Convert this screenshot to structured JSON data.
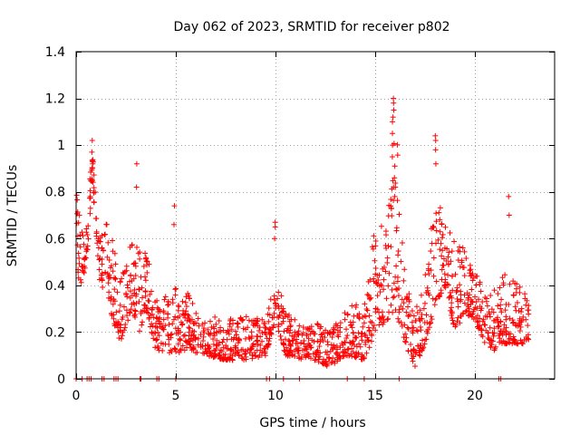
{
  "chart_data": {
    "type": "scatter",
    "title": "Day 062 of 2023, SRMTID for receiver p802",
    "xlabel": "GPS time / hours",
    "ylabel": "SRMTID / TECUs",
    "xlim": [
      0,
      24
    ],
    "ylim": [
      0,
      1.4
    ],
    "x_ticks": [
      0,
      5,
      10,
      15,
      20
    ],
    "x_tick_labels": [
      "0",
      "5",
      "10",
      "15",
      "20"
    ],
    "y_ticks": [
      0,
      0.2,
      0.4,
      0.6,
      0.8,
      1,
      1.2,
      1.4
    ],
    "y_tick_labels": [
      "0",
      "0.2",
      "0.4",
      "0.6",
      "0.8",
      "1",
      "1.2",
      "1.4"
    ],
    "grid": true,
    "marker": "+",
    "series": [
      {
        "name": "SRMTID",
        "color": "#ff0000",
        "envelope": [
          {
            "x": 0.0,
            "lo": 0.45,
            "hi": 0.8
          },
          {
            "x": 0.3,
            "lo": 0.4,
            "hi": 0.72
          },
          {
            "x": 0.6,
            "lo": 0.55,
            "hi": 0.7
          },
          {
            "x": 0.8,
            "lo": 0.85,
            "hi": 1.02
          },
          {
            "x": 1.2,
            "lo": 0.4,
            "hi": 0.6
          },
          {
            "x": 1.5,
            "lo": 0.35,
            "hi": 0.72
          },
          {
            "x": 2.2,
            "lo": 0.15,
            "hi": 0.45
          },
          {
            "x": 2.8,
            "lo": 0.3,
            "hi": 0.62
          },
          {
            "x": 3.2,
            "lo": 0.2,
            "hi": 0.62
          },
          {
            "x": 3.5,
            "lo": 0.3,
            "hi": 0.58
          },
          {
            "x": 4.0,
            "lo": 0.12,
            "hi": 0.35
          },
          {
            "x": 4.8,
            "lo": 0.1,
            "hi": 0.4
          },
          {
            "x": 5.5,
            "lo": 0.12,
            "hi": 0.38
          },
          {
            "x": 6.5,
            "lo": 0.1,
            "hi": 0.28
          },
          {
            "x": 7.5,
            "lo": 0.08,
            "hi": 0.25
          },
          {
            "x": 8.5,
            "lo": 0.08,
            "hi": 0.28
          },
          {
            "x": 9.5,
            "lo": 0.1,
            "hi": 0.25
          },
          {
            "x": 10.0,
            "lo": 0.25,
            "hi": 0.45
          },
          {
            "x": 10.5,
            "lo": 0.1,
            "hi": 0.3
          },
          {
            "x": 11.5,
            "lo": 0.08,
            "hi": 0.22
          },
          {
            "x": 12.0,
            "lo": 0.08,
            "hi": 0.25
          },
          {
            "x": 12.7,
            "lo": 0.05,
            "hi": 0.2
          },
          {
            "x": 13.5,
            "lo": 0.1,
            "hi": 0.3
          },
          {
            "x": 14.5,
            "lo": 0.08,
            "hi": 0.35
          },
          {
            "x": 15.0,
            "lo": 0.2,
            "hi": 0.72
          },
          {
            "x": 15.6,
            "lo": 0.25,
            "hi": 0.65
          },
          {
            "x": 16.0,
            "lo": 0.3,
            "hi": 1.2
          },
          {
            "x": 16.5,
            "lo": 0.15,
            "hi": 0.45
          },
          {
            "x": 17.0,
            "lo": 0.05,
            "hi": 0.3
          },
          {
            "x": 17.5,
            "lo": 0.15,
            "hi": 0.45
          },
          {
            "x": 18.0,
            "lo": 0.3,
            "hi": 0.8
          },
          {
            "x": 18.5,
            "lo": 0.4,
            "hi": 0.68
          },
          {
            "x": 19.0,
            "lo": 0.2,
            "hi": 0.62
          },
          {
            "x": 19.5,
            "lo": 0.28,
            "hi": 0.55
          },
          {
            "x": 20.0,
            "lo": 0.25,
            "hi": 0.45
          },
          {
            "x": 20.5,
            "lo": 0.15,
            "hi": 0.4
          },
          {
            "x": 21.0,
            "lo": 0.12,
            "hi": 0.4
          },
          {
            "x": 21.5,
            "lo": 0.15,
            "hi": 0.45
          },
          {
            "x": 22.0,
            "lo": 0.15,
            "hi": 0.42
          },
          {
            "x": 22.7,
            "lo": 0.15,
            "hi": 0.35
          }
        ],
        "spikes": [
          {
            "x": 0.8,
            "values": [
              0.85,
              0.9,
              0.92,
              0.97,
              1.02
            ]
          },
          {
            "x": 3.05,
            "values": [
              0.82,
              0.92
            ]
          },
          {
            "x": 4.9,
            "values": [
              0.66,
              0.74
            ]
          },
          {
            "x": 9.95,
            "values": [
              0.6,
              0.65,
              0.67
            ]
          },
          {
            "x": 15.9,
            "values": [
              0.95,
              1.0,
              1.05,
              1.1,
              1.12,
              1.15,
              1.18,
              1.2
            ]
          },
          {
            "x": 16.0,
            "values": [
              0.78,
              0.82,
              0.86
            ]
          },
          {
            "x": 18.05,
            "values": [
              0.92,
              0.98,
              1.02,
              1.04
            ]
          },
          {
            "x": 21.7,
            "values": [
              0.7,
              0.78
            ]
          }
        ],
        "zero_x": [
          0.0,
          0.3,
          0.55,
          0.65,
          0.75,
          1.3,
          1.4,
          1.9,
          2.0,
          2.1,
          3.2,
          3.25,
          4.05,
          4.15,
          5.0,
          9.55,
          9.7,
          10.4,
          11.2,
          13.6,
          14.45,
          16.2,
          21.2,
          21.3
        ]
      }
    ]
  }
}
